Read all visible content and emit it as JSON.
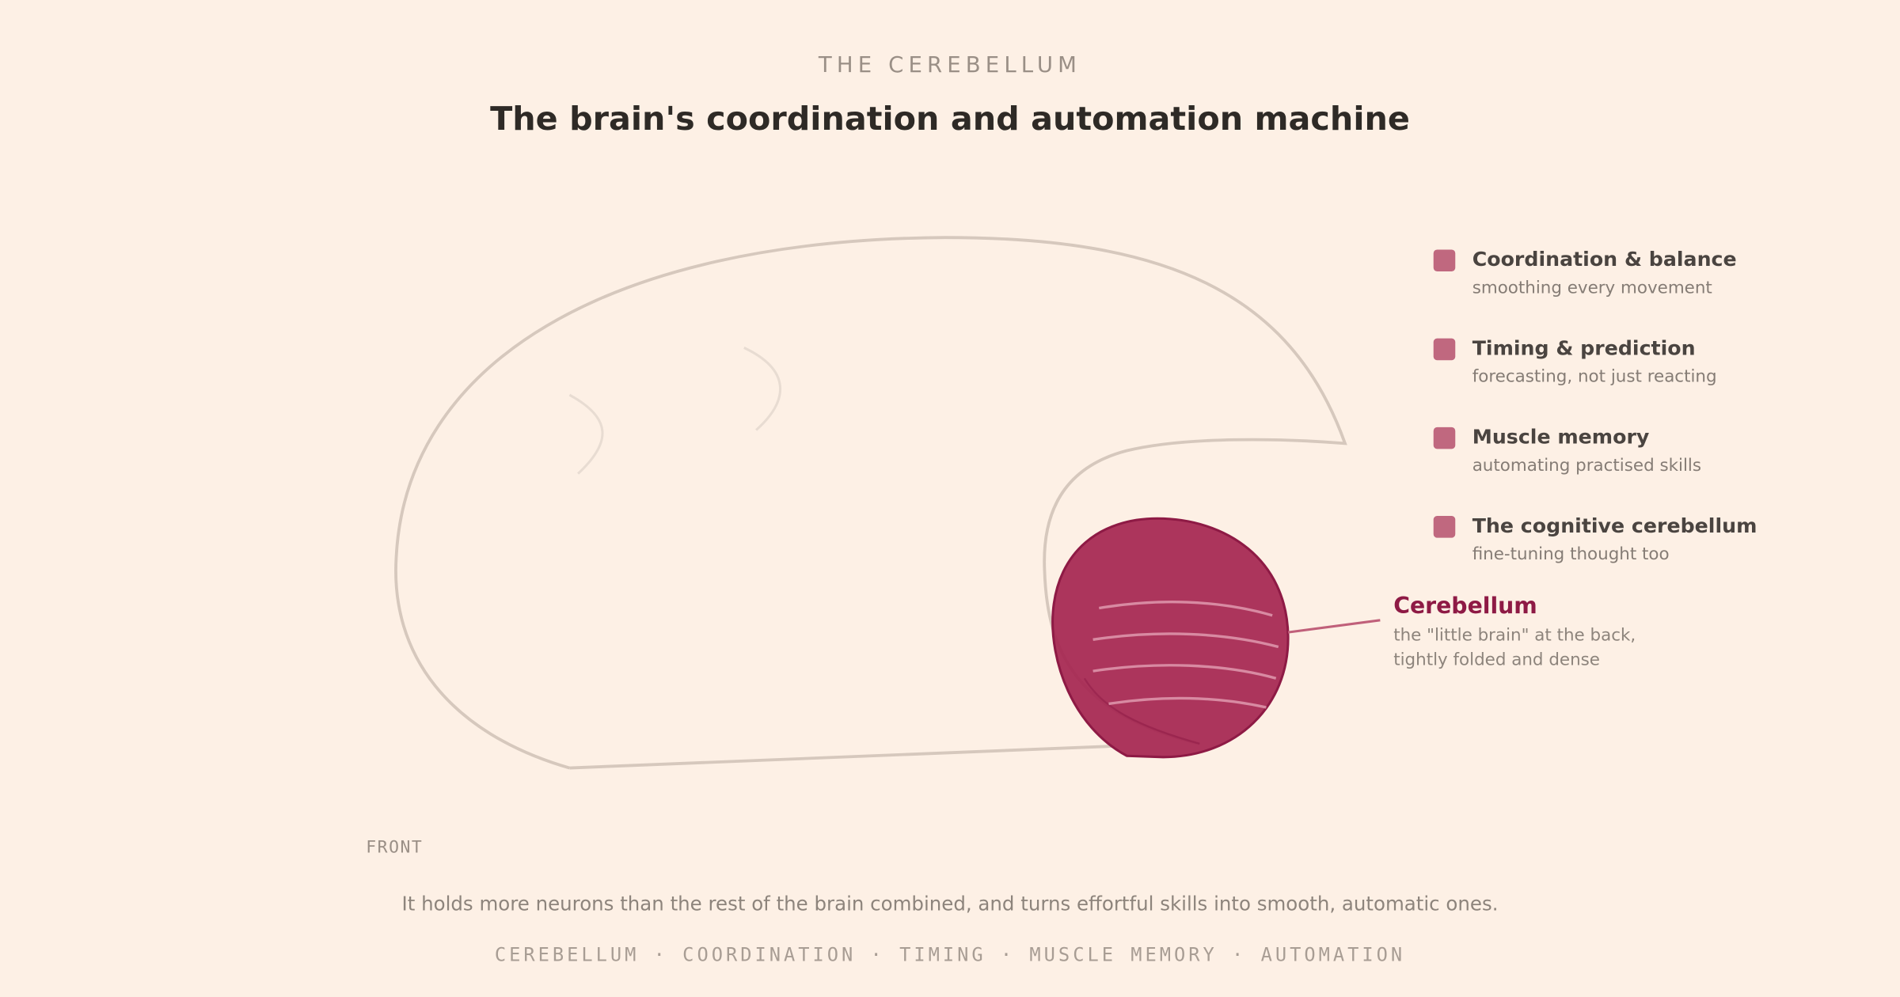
{
  "header": {
    "eyebrow": "THE CEREBELLUM",
    "title": "The brain's coordination and automation machine"
  },
  "legend": [
    {
      "label": "Coordination & balance",
      "sub": "smoothing every movement"
    },
    {
      "label": "Timing & prediction",
      "sub": "forecasting, not just reacting"
    },
    {
      "label": "Muscle memory",
      "sub": "automating practised skills"
    },
    {
      "label": "The cognitive cerebellum",
      "sub": "fine-tuning thought too"
    }
  ],
  "callout": {
    "label": "Cerebellum",
    "lines": [
      "the \"little brain\" at the back,",
      "tightly folded and dense"
    ]
  },
  "orientation": "FRONT",
  "caption": "It holds more neurons than the rest of the brain combined, and turns effortful skills into smooth, automatic ones.",
  "tags": "CEREBELLUM · COORDINATION · TIMING · MUSCLE MEMORY · AUTOMATION"
}
